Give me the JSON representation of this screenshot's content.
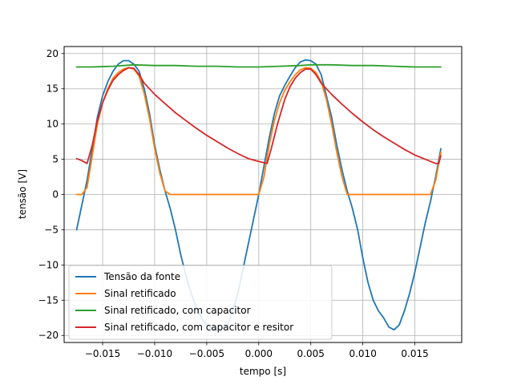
{
  "chart_data": {
    "type": "line",
    "xlabel": "tempo [s]",
    "ylabel": "tensão [V]",
    "xlim": [
      -0.0187,
      0.0195
    ],
    "ylim": [
      -21.0,
      21.0
    ],
    "grid": true,
    "legend_position": "lower left",
    "xticks": [
      -0.015,
      -0.01,
      -0.005,
      0.0,
      0.005,
      0.01,
      0.015
    ],
    "xtick_labels": [
      "−0.015",
      "−0.010",
      "−0.005",
      "0.000",
      "0.005",
      "0.010",
      "0.015"
    ],
    "yticks": [
      -20,
      -15,
      -10,
      -5,
      0,
      5,
      10,
      15,
      20
    ],
    "ytick_labels": [
      "−20",
      "−15",
      "−10",
      "−5",
      "0",
      "5",
      "10",
      "15",
      "20"
    ],
    "series": [
      {
        "name": "Tensão da fonte",
        "color": "#1f77b4",
        "points": [
          [
            -0.0175,
            -5.0
          ],
          [
            -0.017,
            -1.5
          ],
          [
            -0.0165,
            2.0
          ],
          [
            -0.016,
            6.5
          ],
          [
            -0.0155,
            11.0
          ],
          [
            -0.015,
            14.0
          ],
          [
            -0.0145,
            16.0
          ],
          [
            -0.014,
            17.5
          ],
          [
            -0.0135,
            18.5
          ],
          [
            -0.013,
            19.0
          ],
          [
            -0.0125,
            19.0
          ],
          [
            -0.012,
            18.5
          ],
          [
            -0.0115,
            17.5
          ],
          [
            -0.011,
            15.0
          ],
          [
            -0.0105,
            11.5
          ],
          [
            -0.01,
            7.0
          ],
          [
            -0.0095,
            3.5
          ],
          [
            -0.009,
            0.5
          ],
          [
            -0.0085,
            -2.0
          ],
          [
            -0.008,
            -5.0
          ],
          [
            -0.0075,
            -8.5
          ],
          [
            -0.007,
            -11.5
          ],
          [
            -0.0065,
            -14.0
          ],
          [
            -0.006,
            -16.0
          ],
          [
            -0.0055,
            -17.5
          ],
          [
            -0.005,
            -18.5
          ],
          [
            -0.0045,
            -19.0
          ],
          [
            -0.004,
            -19.2
          ],
          [
            -0.0035,
            -19.0
          ],
          [
            -0.003,
            -18.5
          ],
          [
            -0.0025,
            -16.5
          ],
          [
            -0.002,
            -14.0
          ],
          [
            -0.0015,
            -10.5
          ],
          [
            -0.001,
            -7.0
          ],
          [
            -0.0005,
            -3.5
          ],
          [
            0.0,
            0.0
          ],
          [
            0.0005,
            4.0
          ],
          [
            0.001,
            8.0
          ],
          [
            0.0015,
            11.5
          ],
          [
            0.002,
            14.0
          ],
          [
            0.0025,
            15.5
          ],
          [
            0.003,
            16.8
          ],
          [
            0.0035,
            18.0
          ],
          [
            0.004,
            18.8
          ],
          [
            0.0045,
            19.1
          ],
          [
            0.005,
            19.0
          ],
          [
            0.0055,
            18.5
          ],
          [
            0.006,
            17.0
          ],
          [
            0.0065,
            14.0
          ],
          [
            0.007,
            11.0
          ],
          [
            0.0075,
            7.0
          ],
          [
            0.008,
            3.5
          ],
          [
            0.0085,
            0.5
          ],
          [
            0.009,
            -2.0
          ],
          [
            0.0095,
            -5.0
          ],
          [
            0.01,
            -9.0
          ],
          [
            0.0105,
            -12.5
          ],
          [
            0.011,
            -15.0
          ],
          [
            0.0115,
            -16.5
          ],
          [
            0.012,
            -17.5
          ],
          [
            0.0125,
            -18.8
          ],
          [
            0.013,
            -19.2
          ],
          [
            0.0135,
            -18.5
          ],
          [
            0.014,
            -16.5
          ],
          [
            0.0145,
            -14.0
          ],
          [
            0.015,
            -11.0
          ],
          [
            0.0155,
            -7.5
          ],
          [
            0.016,
            -4.0
          ],
          [
            0.0165,
            -1.0
          ],
          [
            0.017,
            2.5
          ],
          [
            0.0175,
            6.5
          ]
        ]
      },
      {
        "name": "Sinal retificado",
        "color": "#ff7f0e",
        "points": [
          [
            -0.0175,
            0.0
          ],
          [
            -0.017,
            0.0
          ],
          [
            -0.0165,
            1.0
          ],
          [
            -0.016,
            5.5
          ],
          [
            -0.0155,
            10.0
          ],
          [
            -0.015,
            13.0
          ],
          [
            -0.0145,
            15.0
          ],
          [
            -0.014,
            16.5
          ],
          [
            -0.0135,
            17.3
          ],
          [
            -0.013,
            17.8
          ],
          [
            -0.0125,
            18.0
          ],
          [
            -0.012,
            17.8
          ],
          [
            -0.0115,
            16.8
          ],
          [
            -0.011,
            14.3
          ],
          [
            -0.0105,
            10.8
          ],
          [
            -0.01,
            6.5
          ],
          [
            -0.0095,
            3.0
          ],
          [
            -0.009,
            0.5
          ],
          [
            -0.0085,
            0.0
          ],
          [
            -0.008,
            0.0
          ],
          [
            -0.006,
            0.0
          ],
          [
            -0.004,
            0.0
          ],
          [
            -0.002,
            0.0
          ],
          [
            0.0,
            0.0
          ],
          [
            0.0005,
            2.5
          ],
          [
            0.001,
            7.0
          ],
          [
            0.0015,
            10.5
          ],
          [
            0.002,
            13.0
          ],
          [
            0.0025,
            14.8
          ],
          [
            0.003,
            16.0
          ],
          [
            0.0035,
            17.0
          ],
          [
            0.004,
            17.7
          ],
          [
            0.0045,
            18.0
          ],
          [
            0.005,
            17.9
          ],
          [
            0.0055,
            17.3
          ],
          [
            0.006,
            16.0
          ],
          [
            0.0065,
            13.5
          ],
          [
            0.007,
            10.0
          ],
          [
            0.0075,
            6.0
          ],
          [
            0.008,
            2.5
          ],
          [
            0.0085,
            0.0
          ],
          [
            0.01,
            0.0
          ],
          [
            0.012,
            0.0
          ],
          [
            0.014,
            0.0
          ],
          [
            0.016,
            0.0
          ],
          [
            0.0165,
            0.0
          ],
          [
            0.017,
            2.0
          ],
          [
            0.0175,
            6.0
          ]
        ]
      },
      {
        "name": "Sinal retificado, com capacitor",
        "color": "#2ca02c",
        "points": [
          [
            -0.0175,
            18.1
          ],
          [
            -0.016,
            18.1
          ],
          [
            -0.014,
            18.2
          ],
          [
            -0.012,
            18.4
          ],
          [
            -0.01,
            18.3
          ],
          [
            -0.008,
            18.3
          ],
          [
            -0.006,
            18.2
          ],
          [
            -0.004,
            18.2
          ],
          [
            -0.002,
            18.1
          ],
          [
            0.0,
            18.1
          ],
          [
            0.002,
            18.2
          ],
          [
            0.004,
            18.3
          ],
          [
            0.005,
            18.4
          ],
          [
            0.007,
            18.4
          ],
          [
            0.009,
            18.3
          ],
          [
            0.011,
            18.3
          ],
          [
            0.013,
            18.2
          ],
          [
            0.015,
            18.1
          ],
          [
            0.0175,
            18.1
          ]
        ]
      },
      {
        "name": "Sinal retificado, com capacitor e resitor",
        "color": "#d62728",
        "points": [
          [
            -0.0175,
            5.1
          ],
          [
            -0.017,
            4.8
          ],
          [
            -0.0165,
            4.4
          ],
          [
            -0.016,
            7.0
          ],
          [
            -0.0155,
            10.5
          ],
          [
            -0.015,
            13.0
          ],
          [
            -0.0145,
            14.8
          ],
          [
            -0.014,
            16.2
          ],
          [
            -0.0135,
            17.0
          ],
          [
            -0.013,
            17.6
          ],
          [
            -0.0125,
            18.0
          ],
          [
            -0.012,
            17.9
          ],
          [
            -0.0115,
            17.0
          ],
          [
            -0.011,
            15.8
          ],
          [
            -0.01,
            14.2
          ],
          [
            -0.009,
            12.9
          ],
          [
            -0.008,
            11.6
          ],
          [
            -0.007,
            10.5
          ],
          [
            -0.006,
            9.4
          ],
          [
            -0.005,
            8.4
          ],
          [
            -0.004,
            7.5
          ],
          [
            -0.003,
            6.6
          ],
          [
            -0.002,
            5.8
          ],
          [
            -0.001,
            5.1
          ],
          [
            0.0,
            4.7
          ],
          [
            0.0008,
            4.4
          ],
          [
            0.0012,
            6.5
          ],
          [
            0.0018,
            10.0
          ],
          [
            0.0025,
            13.5
          ],
          [
            0.003,
            15.3
          ],
          [
            0.0035,
            16.5
          ],
          [
            0.004,
            17.3
          ],
          [
            0.0045,
            17.8
          ],
          [
            0.005,
            17.8
          ],
          [
            0.0055,
            17.0
          ],
          [
            0.006,
            15.8
          ],
          [
            0.007,
            14.2
          ],
          [
            0.008,
            12.8
          ],
          [
            0.009,
            11.5
          ],
          [
            0.01,
            10.3
          ],
          [
            0.011,
            9.2
          ],
          [
            0.012,
            8.2
          ],
          [
            0.013,
            7.3
          ],
          [
            0.014,
            6.4
          ],
          [
            0.015,
            5.6
          ],
          [
            0.016,
            5.0
          ],
          [
            0.017,
            4.4
          ],
          [
            0.0173,
            4.4
          ],
          [
            0.0175,
            5.5
          ]
        ]
      }
    ]
  }
}
